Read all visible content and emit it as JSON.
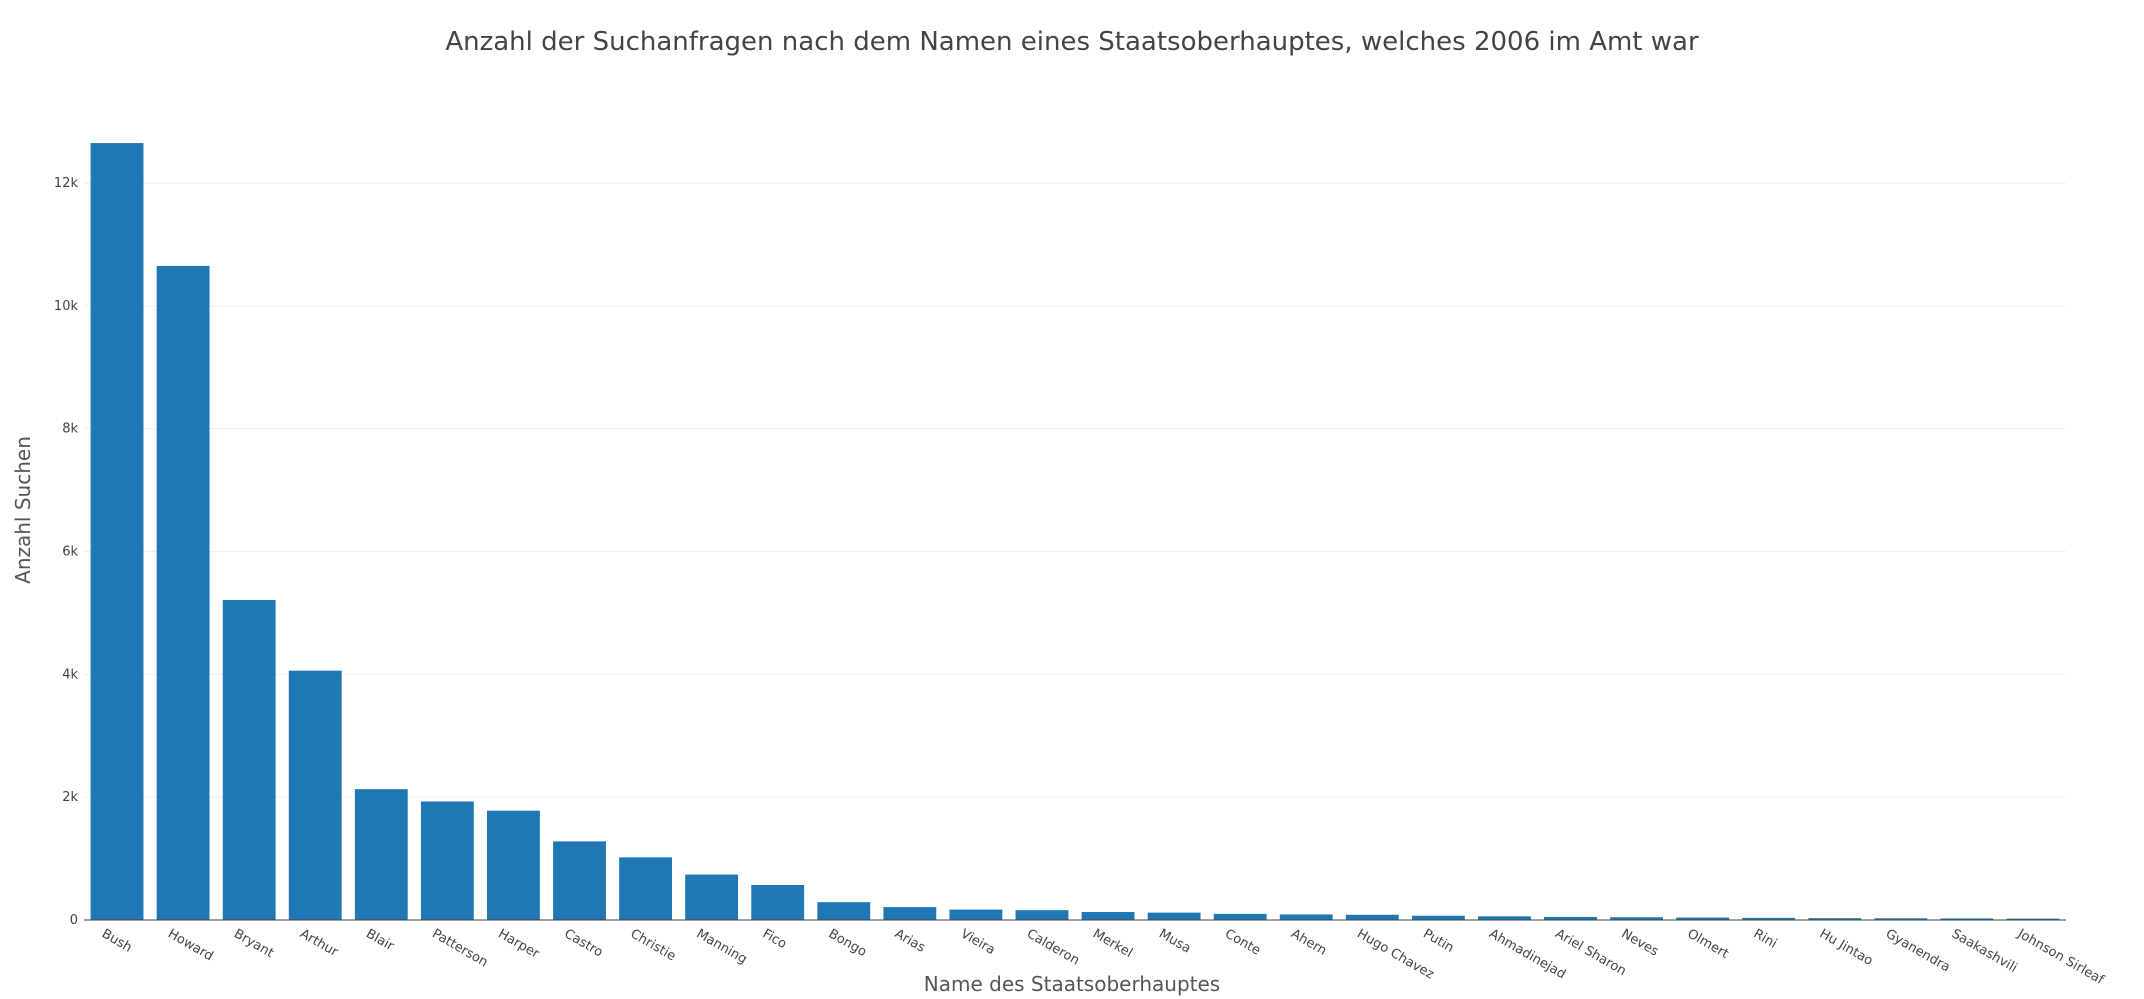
{
  "chart_data": {
    "type": "bar",
    "title": "Anzahl der Suchanfragen nach dem Namen eines Staatsoberhauptes, welches 2006 im Amt war",
    "xlabel": "Name des Staatsoberhauptes",
    "ylabel": "Anzahl Suchen",
    "ylim": [
      0,
      12700
    ],
    "yticks": [
      0,
      2000,
      4000,
      6000,
      8000,
      10000,
      12000
    ],
    "ytick_labels": [
      "0",
      "2k",
      "4k",
      "6k",
      "8k",
      "10k",
      "12k"
    ],
    "grid": "horizontal",
    "color": "#1f77b4",
    "categories": [
      "Bush",
      "Howard",
      "Bryant",
      "Arthur",
      "Blair",
      "Patterson",
      "Harper",
      "Castro",
      "Christie",
      "Manning",
      "Fico",
      "Bongo",
      "Arias",
      "Vieira",
      "Calderon",
      "Merkel",
      "Musa",
      "Conte",
      "Ahern",
      "Hugo Chavez",
      "Putin",
      "Ahmadinejad",
      "Ariel Sharon",
      "Neves",
      "Olmert",
      "Rini",
      "Hu Jintao",
      "Gyanendra",
      "Saakashvili",
      "Johnson Sirleaf"
    ],
    "values": [
      12650,
      10650,
      5210,
      4060,
      2130,
      1930,
      1780,
      1280,
      1020,
      740,
      570,
      290,
      210,
      170,
      160,
      130,
      120,
      100,
      90,
      85,
      70,
      60,
      50,
      45,
      40,
      35,
      30,
      28,
      25,
      22
    ]
  }
}
